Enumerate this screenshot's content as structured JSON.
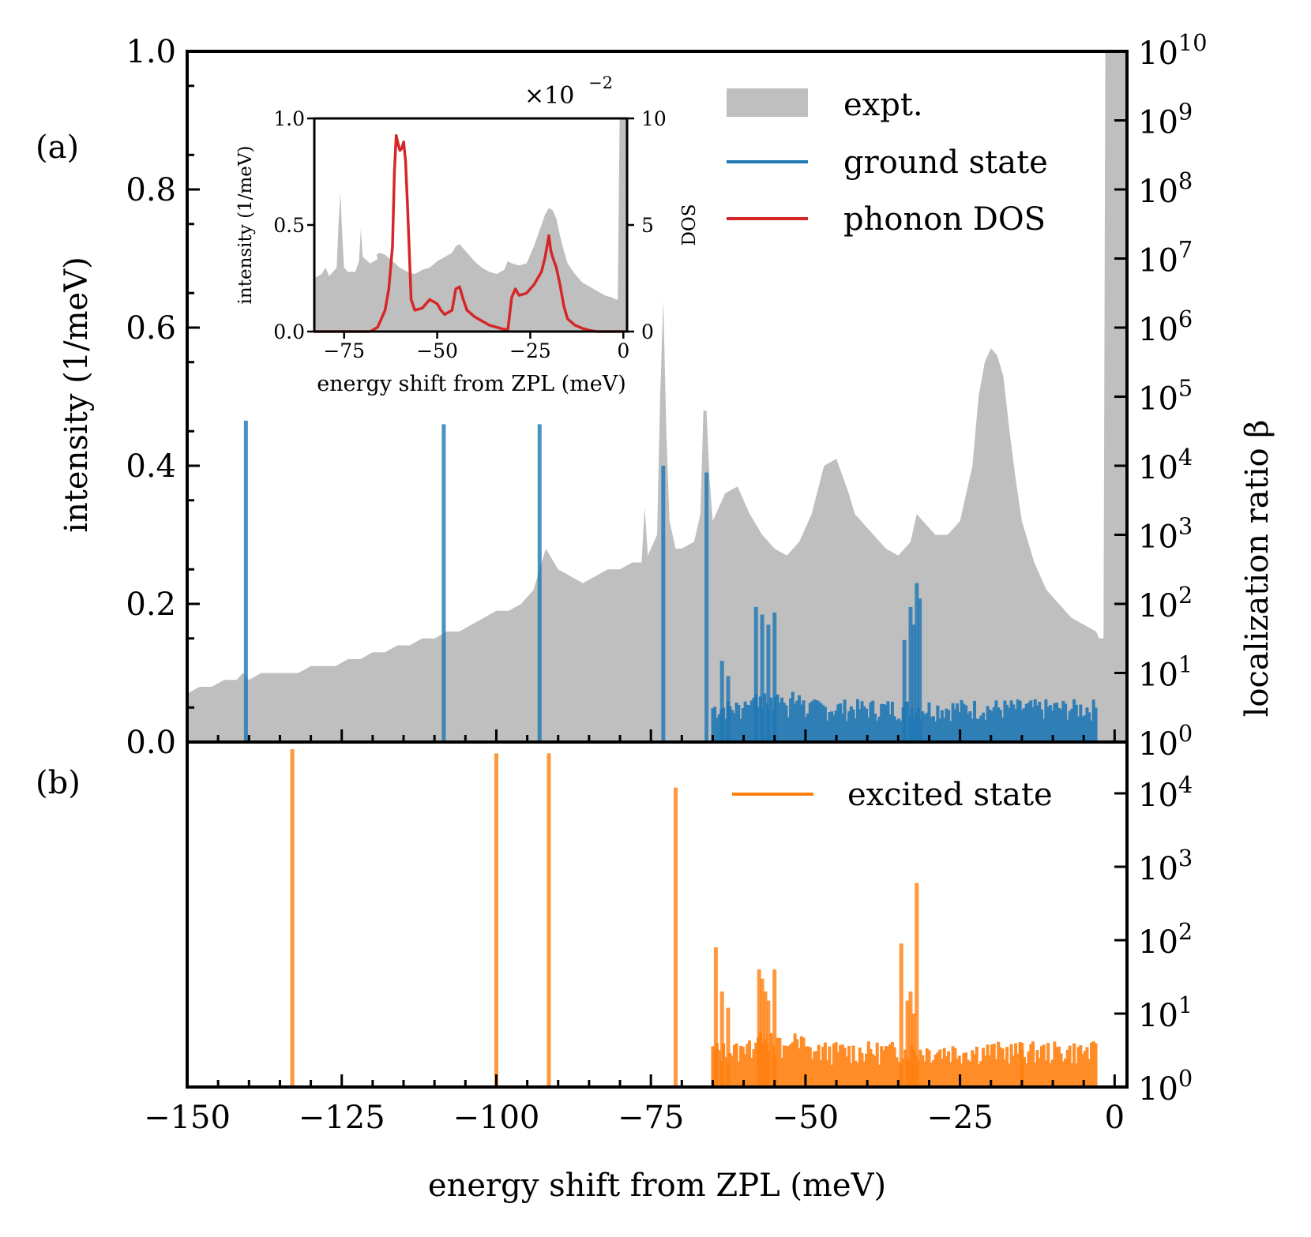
{
  "chart_data": [
    {
      "id": "a",
      "panel_label": "(a)",
      "type": "area",
      "xlabel": "",
      "ylabel": "intensity (1/meV)",
      "ylabel_right": "localization ratio β",
      "xlim": [
        -150,
        2
      ],
      "ylim": [
        0,
        1.0
      ],
      "yticks": [
        "0.0",
        "0.2",
        "0.4",
        "0.6",
        "0.8",
        "1.0"
      ],
      "yticks_values": [
        0.0,
        0.2,
        0.4,
        0.6,
        0.8,
        1.0
      ],
      "yscale_right": "log",
      "ylim_right": [
        1,
        10000000000
      ],
      "yticks_right": [
        {
          "base": "10",
          "exp": "0"
        },
        {
          "base": "10",
          "exp": "1"
        },
        {
          "base": "10",
          "exp": "2"
        },
        {
          "base": "10",
          "exp": "3"
        },
        {
          "base": "10",
          "exp": "4"
        },
        {
          "base": "10",
          "exp": "5"
        },
        {
          "base": "10",
          "exp": "6"
        },
        {
          "base": "10",
          "exp": "7"
        },
        {
          "base": "10",
          "exp": "8"
        },
        {
          "base": "10",
          "exp": "9"
        },
        {
          "base": "10",
          "exp": "10"
        }
      ],
      "legend": [
        {
          "label": "expt.",
          "kind": "patch",
          "color": "#bfbfbf"
        },
        {
          "label": "ground state",
          "kind": "line",
          "color": "#1f77b4"
        },
        {
          "label": "phonon DOS",
          "kind": "line",
          "color": "#d62728"
        }
      ],
      "legend_position": "top-right",
      "series": [
        {
          "name": "expt.",
          "color": "#bfbfbf",
          "x": [
            -150,
            -148,
            -146,
            -144,
            -142,
            -141,
            -140,
            -138,
            -136,
            -134,
            -132,
            -130,
            -128,
            -126,
            -124,
            -122,
            -120,
            -118,
            -116,
            -114,
            -112,
            -110,
            -108,
            -106,
            -104,
            -102,
            -100,
            -98,
            -96,
            -94,
            -93,
            -92,
            -90,
            -88,
            -86,
            -84,
            -82,
            -80,
            -78,
            -76.5,
            -76,
            -75.5,
            -74,
            -73.5,
            -73,
            -72.5,
            -72,
            -71,
            -70,
            -68,
            -67,
            -66.5,
            -66,
            -65.5,
            -65,
            -64,
            -63,
            -61,
            -59,
            -57,
            -55,
            -53,
            -51,
            -49,
            -47,
            -45,
            -43,
            -42,
            -41,
            -39,
            -37,
            -35,
            -33,
            -32,
            -31,
            -29,
            -27,
            -25,
            -23,
            -22,
            -21,
            -20,
            -19,
            -18,
            -17,
            -16,
            -15,
            -13,
            -11,
            -9,
            -7,
            -5,
            -3,
            -2.5,
            -2,
            -1.8,
            -1.5,
            -1,
            0,
            1,
            2
          ],
          "y": [
            0.07,
            0.08,
            0.08,
            0.09,
            0.09,
            0.1,
            0.09,
            0.1,
            0.1,
            0.1,
            0.1,
            0.11,
            0.11,
            0.11,
            0.12,
            0.12,
            0.13,
            0.13,
            0.14,
            0.14,
            0.15,
            0.15,
            0.16,
            0.16,
            0.17,
            0.18,
            0.19,
            0.19,
            0.2,
            0.22,
            0.25,
            0.28,
            0.25,
            0.24,
            0.23,
            0.24,
            0.25,
            0.25,
            0.26,
            0.26,
            0.34,
            0.27,
            0.3,
            0.5,
            0.64,
            0.45,
            0.32,
            0.28,
            0.28,
            0.29,
            0.33,
            0.48,
            0.48,
            0.38,
            0.32,
            0.34,
            0.36,
            0.37,
            0.33,
            0.3,
            0.28,
            0.27,
            0.29,
            0.33,
            0.4,
            0.41,
            0.36,
            0.33,
            0.32,
            0.3,
            0.28,
            0.27,
            0.29,
            0.33,
            0.32,
            0.3,
            0.3,
            0.32,
            0.4,
            0.5,
            0.55,
            0.57,
            0.56,
            0.53,
            0.45,
            0.38,
            0.32,
            0.26,
            0.22,
            0.2,
            0.18,
            0.17,
            0.16,
            0.15,
            0.15,
            0.15,
            1.0,
            1.0,
            1.0,
            1.0,
            1.0
          ]
        },
        {
          "name": "ground state",
          "color": "#1f77b4",
          "kind": "bars",
          "x": [
            -140.5,
            -108.5,
            -93,
            -73,
            -66,
            -63.5,
            -62.5,
            -58,
            -57,
            -56,
            -55,
            -34,
            -33,
            -32.5,
            -32,
            -31.5
          ],
          "beta": [
            45000,
            40000,
            40000,
            10000,
            8000,
            15,
            9,
            90,
            70,
            50,
            75,
            30,
            90,
            50,
            200,
            120
          ]
        }
      ]
    },
    {
      "id": "a-inset",
      "type": "area",
      "xlabel": "energy shift from ZPL (meV)",
      "ylabel": "intensity (1/meV)",
      "ylabel_right": "DOS",
      "offset_label": "×10",
      "offset_exp": "−2",
      "xlim": [
        -83,
        1
      ],
      "xticks": [
        -75,
        -50,
        -25,
        0
      ],
      "xticks_labels": [
        "−75",
        "−50",
        "−25",
        "0"
      ],
      "ylim": [
        0,
        1.0
      ],
      "yticks_values": [
        0.0,
        0.5,
        1.0
      ],
      "yticks": [
        "0.0",
        "0.5",
        "1.0"
      ],
      "ylim_right": [
        0,
        10
      ],
      "yticks_right": [
        "0",
        "5",
        "10"
      ],
      "series": [
        {
          "name": "expt.",
          "color": "#bfbfbf",
          "x": [
            -83,
            -81,
            -80,
            -79,
            -77,
            -76.5,
            -76,
            -75.5,
            -75,
            -74,
            -72,
            -71,
            -70.5,
            -70,
            -68,
            -66,
            -66.3,
            -65.5,
            -64,
            -62,
            -60,
            -58,
            -56,
            -54,
            -52,
            -50,
            -48,
            -46,
            -45,
            -44,
            -42,
            -40,
            -38,
            -36,
            -34,
            -32,
            -31,
            -30,
            -28,
            -26,
            -24,
            -22,
            -21,
            -20,
            -19,
            -18,
            -17,
            -16,
            -15,
            -13,
            -11,
            -9,
            -7,
            -5,
            -3,
            -2,
            -1.5,
            -1,
            0,
            1
          ],
          "y": [
            0.25,
            0.27,
            0.3,
            0.26,
            0.3,
            0.5,
            0.65,
            0.45,
            0.3,
            0.28,
            0.28,
            0.33,
            0.48,
            0.35,
            0.32,
            0.34,
            0.36,
            0.37,
            0.36,
            0.33,
            0.3,
            0.28,
            0.27,
            0.29,
            0.3,
            0.33,
            0.35,
            0.37,
            0.4,
            0.41,
            0.37,
            0.33,
            0.3,
            0.28,
            0.27,
            0.29,
            0.33,
            0.32,
            0.31,
            0.32,
            0.4,
            0.5,
            0.55,
            0.58,
            0.57,
            0.53,
            0.45,
            0.38,
            0.32,
            0.27,
            0.23,
            0.21,
            0.19,
            0.17,
            0.16,
            0.15,
            0.15,
            1.0,
            1.0,
            1.0
          ]
        },
        {
          "name": "phonon DOS",
          "color": "#d62728",
          "x": [
            -83,
            -68,
            -66,
            -64,
            -63,
            -62,
            -61.5,
            -61,
            -60.5,
            -60,
            -59.5,
            -59,
            -58.5,
            -58,
            -57,
            -56,
            -54,
            -52,
            -50,
            -49,
            -48,
            -46,
            -45,
            -44,
            -43,
            -42,
            -40,
            -38,
            -36,
            -34,
            -32,
            -31,
            -30,
            -29,
            -28,
            -26,
            -24,
            -22,
            -21,
            -20,
            -19.5,
            -19,
            -18,
            -17,
            -16,
            -15,
            -13,
            -11,
            -9,
            -7,
            -5,
            -3,
            -1,
            0
          ],
          "y": [
            0,
            0,
            0.2,
            1.0,
            2.0,
            4.0,
            7.5,
            9.2,
            8.8,
            8.5,
            8.6,
            8.9,
            8.0,
            6.0,
            1.5,
            1.0,
            1.1,
            1.5,
            1.3,
            1.0,
            0.8,
            1.0,
            2.0,
            2.1,
            1.5,
            1.0,
            0.7,
            0.5,
            0.3,
            0.2,
            0.1,
            0.1,
            1.6,
            2.0,
            1.7,
            1.8,
            2.2,
            2.8,
            3.5,
            4.5,
            3.8,
            3.5,
            3.0,
            2.2,
            1.2,
            0.6,
            0.3,
            0.15,
            0.05,
            0,
            0,
            0,
            0,
            0
          ]
        }
      ]
    },
    {
      "id": "b",
      "panel_label": "(b)",
      "type": "bar",
      "xlabel": "energy shift from ZPL (meV)",
      "xlim": [
        -150,
        2
      ],
      "xticks": [
        -150,
        -125,
        -100,
        -75,
        -50,
        -25,
        0
      ],
      "xticks_labels": [
        "−150",
        "−125",
        "−100",
        "−75",
        "−50",
        "−25",
        "0"
      ],
      "yscale": "log",
      "ylim": [
        1,
        50000
      ],
      "yticks": [
        {
          "base": "10",
          "exp": "0"
        },
        {
          "base": "10",
          "exp": "1"
        },
        {
          "base": "10",
          "exp": "2"
        },
        {
          "base": "10",
          "exp": "3"
        },
        {
          "base": "10",
          "exp": "4"
        }
      ],
      "legend": [
        {
          "label": "excited state",
          "kind": "line",
          "color": "#ff7f0e"
        }
      ],
      "legend_position": "top-right",
      "series": [
        {
          "name": "excited state",
          "color": "#ff7f0e",
          "kind": "bars",
          "x": [
            -133,
            -100,
            -91.5,
            -71,
            -64.5,
            -63.5,
            -62.5,
            -57.5,
            -57,
            -56.5,
            -56,
            -55,
            -34.5,
            -33.5,
            -33,
            -32.5,
            -32,
            -15
          ],
          "beta": [
            40000,
            35000,
            35000,
            12000,
            80,
            20,
            12,
            40,
            30,
            20,
            15,
            40,
            90,
            15,
            20,
            10,
            600,
            4
          ]
        }
      ]
    }
  ]
}
